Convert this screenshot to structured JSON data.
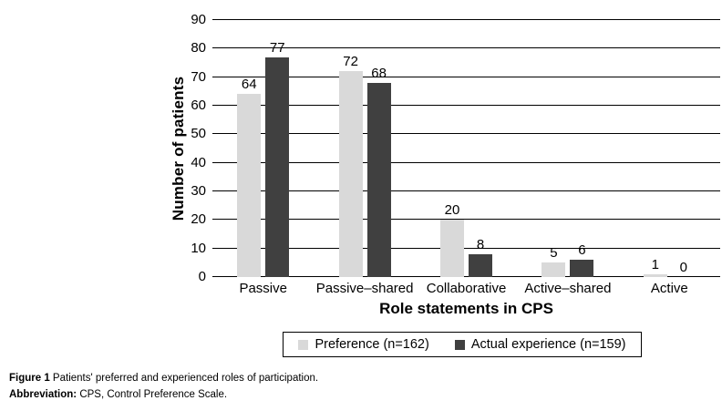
{
  "figure": {
    "caption_label": "Figure 1",
    "caption_text": " Patients' preferred and experienced roles of participation.",
    "abbrev_label": "Abbreviation:",
    "abbrev_text": " CPS, Control Preference Scale."
  },
  "chart_data": {
    "type": "bar",
    "title": "",
    "xlabel": "Role statements in CPS",
    "ylabel": "Number of patients",
    "categories": [
      "Passive",
      "Passive–shared",
      "Collaborative",
      "Active–shared",
      "Active"
    ],
    "series": [
      {
        "name": "Preference (n=162)",
        "color": "#d9d9d9",
        "values": [
          64,
          72,
          20,
          5,
          1
        ]
      },
      {
        "name": "Actual experience (n=159)",
        "color": "#404040",
        "values": [
          77,
          68,
          8,
          6,
          0
        ]
      }
    ],
    "ylim": [
      0,
      90
    ],
    "yticks": [
      0,
      10,
      20,
      30,
      40,
      50,
      60,
      70,
      80,
      90
    ],
    "grid": true,
    "legend_position": "bottom",
    "bar_value_labels": true
  }
}
